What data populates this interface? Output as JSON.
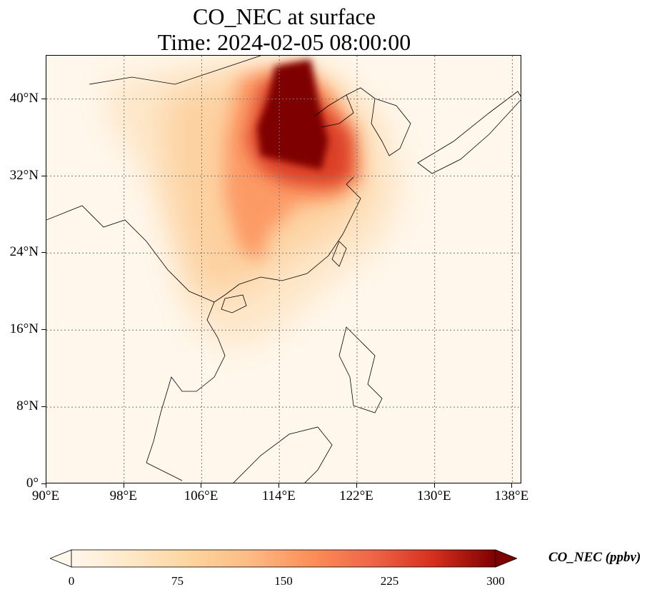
{
  "title": {
    "line1": "CO_NEC at surface",
    "line2": "Time: 2024-02-05 08:00:00"
  },
  "map": {
    "lon_range": [
      90,
      139
    ],
    "lat_range": [
      0,
      44.5
    ],
    "lat_ticks": [
      {
        "value": 0,
        "label": "0°"
      },
      {
        "value": 8,
        "label": "8°N"
      },
      {
        "value": 16,
        "label": "16°N"
      },
      {
        "value": 24,
        "label": "24°N"
      },
      {
        "value": 32,
        "label": "32°N"
      },
      {
        "value": 40,
        "label": "40°N"
      }
    ],
    "lon_ticks": [
      {
        "value": 90,
        "label": "90°E"
      },
      {
        "value": 98,
        "label": "98°E"
      },
      {
        "value": 106,
        "label": "106°E"
      },
      {
        "value": 114,
        "label": "114°E"
      },
      {
        "value": 122,
        "label": "122°E"
      },
      {
        "value": 130,
        "label": "130°E"
      },
      {
        "value": 138,
        "label": "138°E"
      }
    ],
    "gridlines": true,
    "colormap": "OrRd",
    "colors": {
      "low": "#fff7ec",
      "mid": "#fdbb84",
      "high": "#7f0000",
      "coastline": "#000000",
      "grid": "#777777"
    }
  },
  "colorbar": {
    "label": "CO_NEC (ppbv)",
    "min": 0,
    "max": 300,
    "extend": "both",
    "ticks": [
      {
        "value": 0,
        "label": "0"
      },
      {
        "value": 75,
        "label": "75"
      },
      {
        "value": 150,
        "label": "150"
      },
      {
        "value": 225,
        "label": "225"
      },
      {
        "value": 300,
        "label": "300"
      }
    ]
  }
}
